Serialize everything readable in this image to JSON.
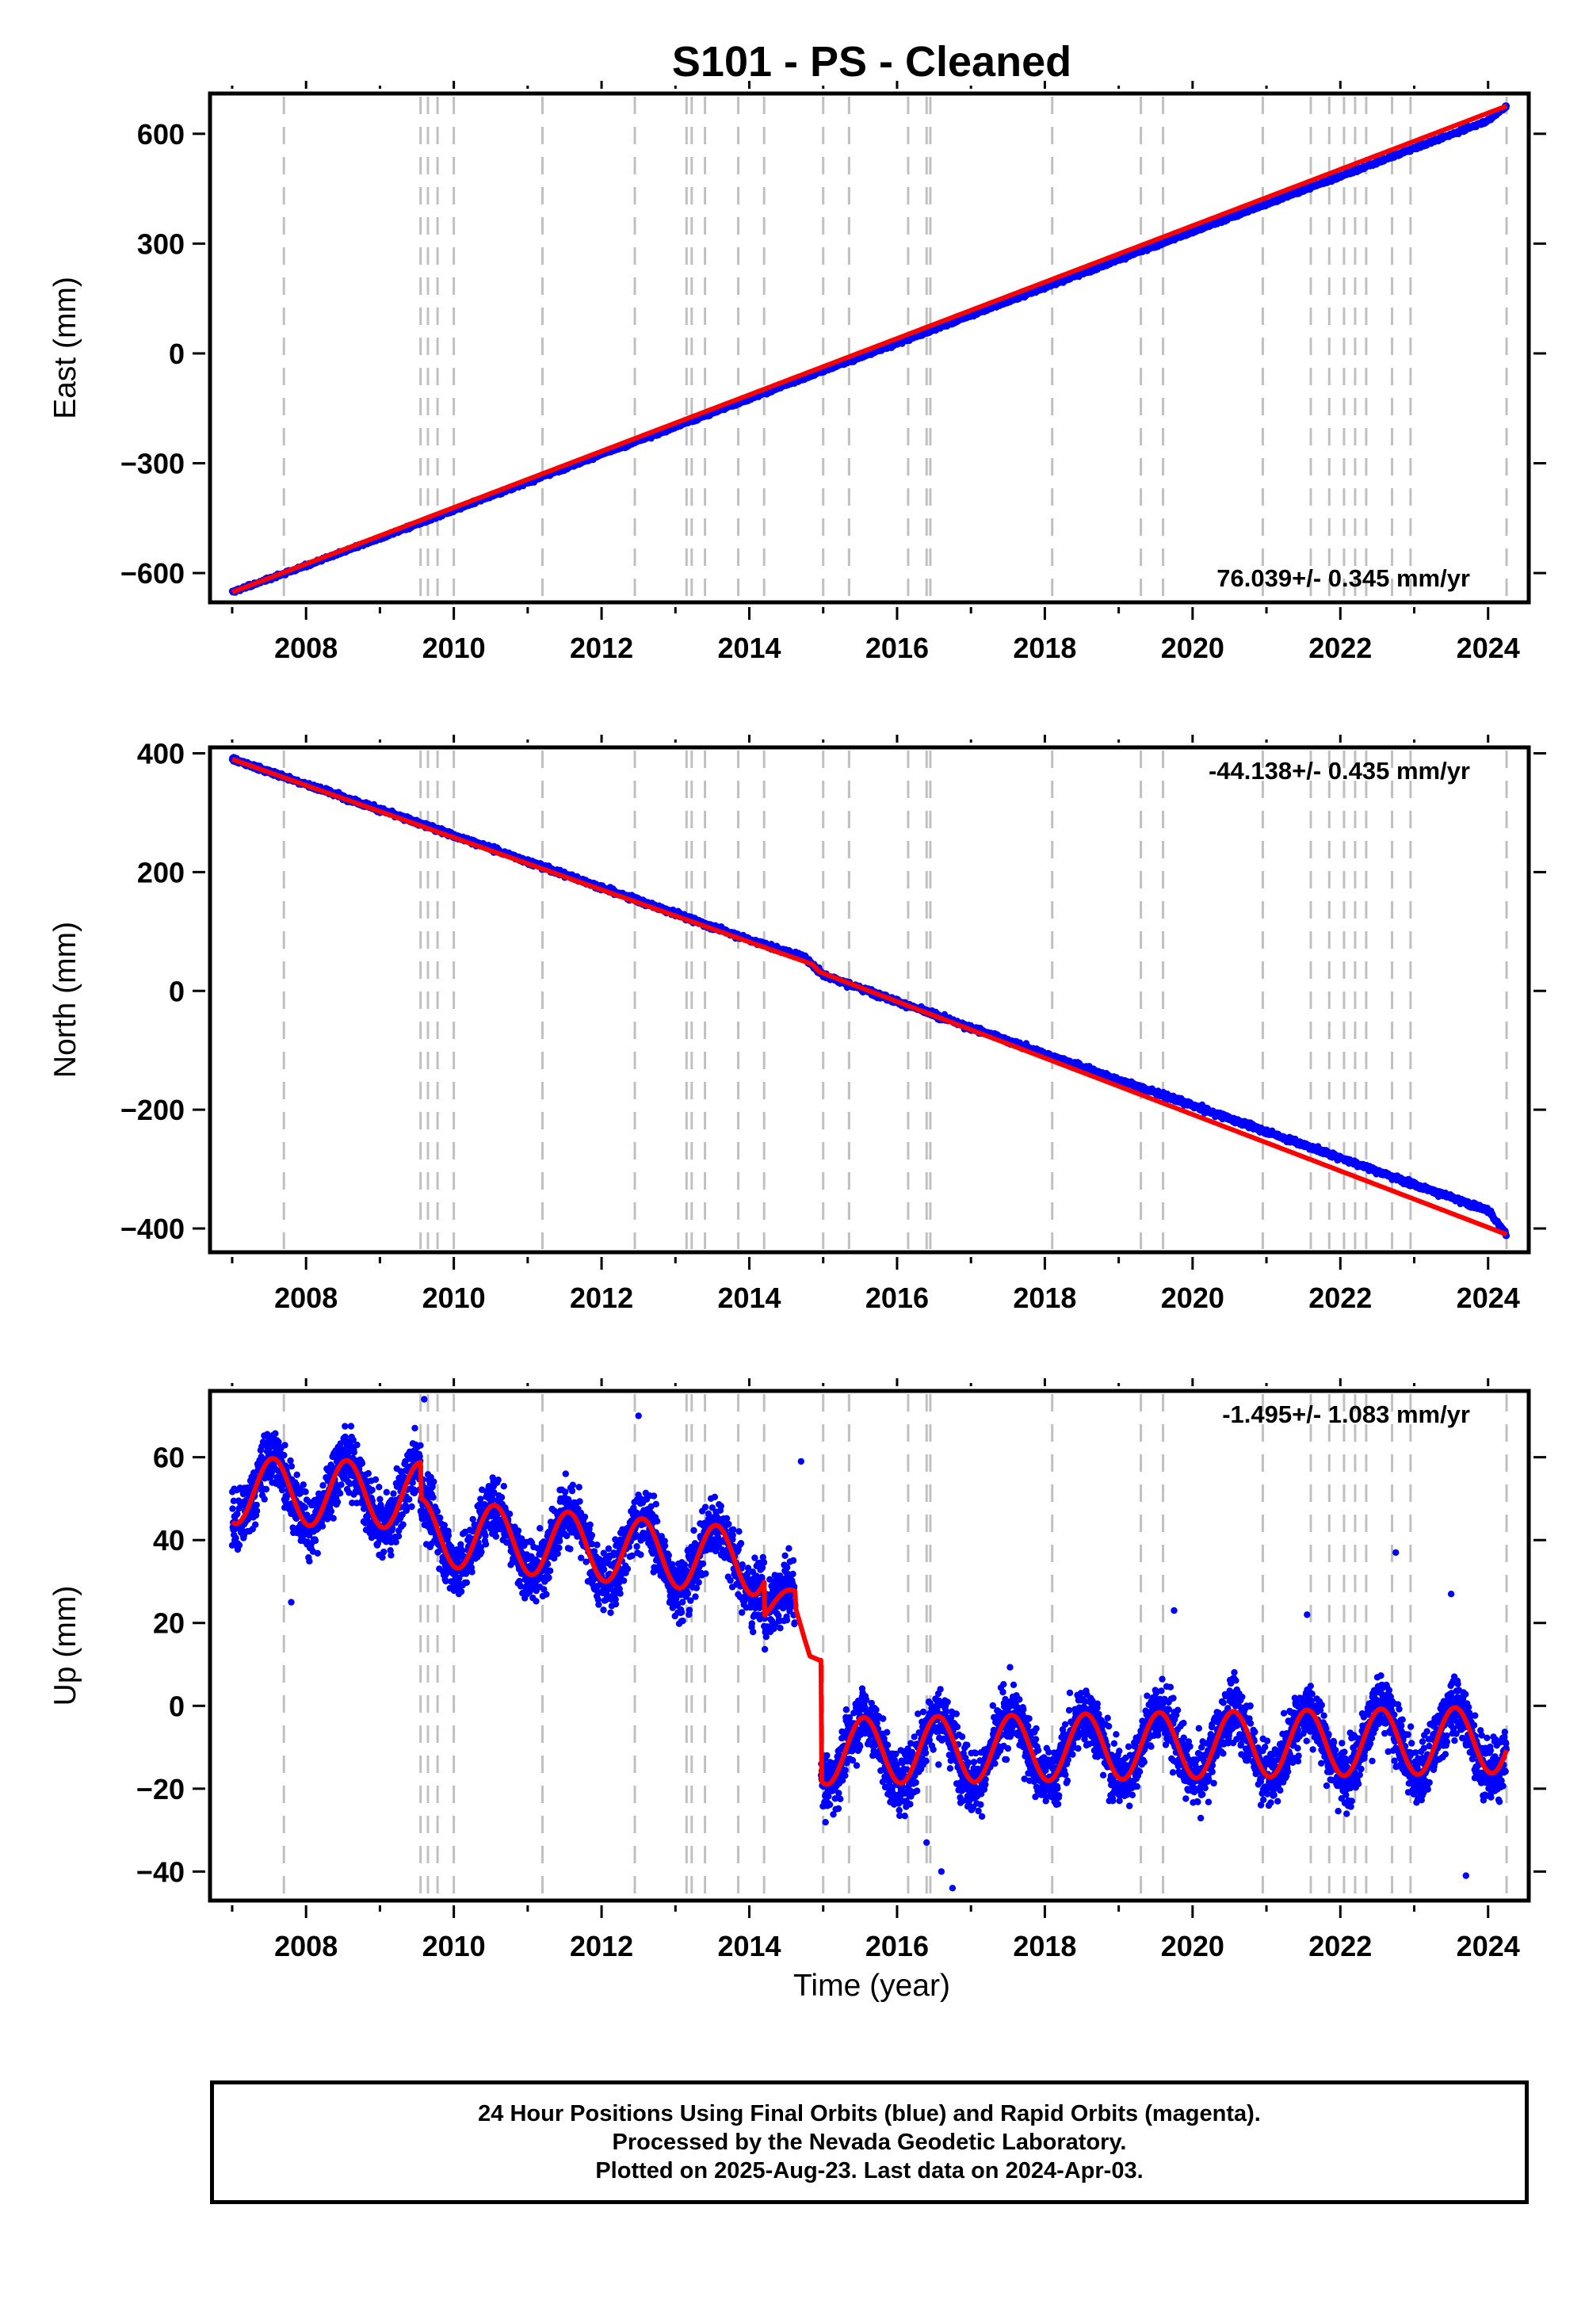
{
  "title": "S101  - PS - Cleaned",
  "xlabel": "Time (year)",
  "x_ticks": [
    "2008",
    "2010",
    "2012",
    "2014",
    "2016",
    "2018",
    "2020",
    "2022",
    "2024"
  ],
  "colors": {
    "data": "#0000ff",
    "model": "#ff0000",
    "grid": "#c0c0c0",
    "axis": "#000000"
  },
  "footer": {
    "line1": "24 Hour Positions Using Final Orbits (blue) and Rapid Orbits (magenta).",
    "line2": "Processed by the Nevada Geodetic Laboratory.",
    "line3": "Plotted on 2025-Aug-23. Last data on 2024-Apr-03."
  },
  "chart_data": [
    {
      "type": "scatter",
      "ylabel": "East (mm)",
      "rate_label": "76.039+/- 0.345 mm/yr",
      "rate_position": "bottom-right",
      "xlim": [
        2006.7,
        2024.55
      ],
      "ylim": [
        -680,
        710
      ],
      "y_ticks": [
        "-600",
        "-300",
        "0",
        "300",
        "600"
      ],
      "vertical_event_lines": [
        2007.7,
        2009.55,
        2009.65,
        2009.78,
        2010.0,
        2011.2,
        2012.45,
        2013.15,
        2013.22,
        2013.4,
        2013.85,
        2014.2,
        2015.0,
        2015.35,
        2016.15,
        2016.4,
        2016.45,
        2018.1,
        2019.3,
        2019.6,
        2020.95,
        2021.6,
        2021.85,
        2022.05,
        2022.2,
        2022.35,
        2022.7,
        2022.95,
        2024.25
      ],
      "data_points": [
        [
          2007.0,
          -652
        ],
        [
          2008.0,
          -580
        ],
        [
          2009.0,
          -505
        ],
        [
          2010.0,
          -428
        ],
        [
          2011.0,
          -352
        ],
        [
          2012.0,
          -276
        ],
        [
          2013.0,
          -201
        ],
        [
          2014.0,
          -124
        ],
        [
          2015.0,
          -48
        ],
        [
          2016.0,
          27
        ],
        [
          2017.0,
          104
        ],
        [
          2018.0,
          180
        ],
        [
          2019.0,
          256
        ],
        [
          2020.0,
          332
        ],
        [
          2021.0,
          408
        ],
        [
          2022.0,
          484
        ],
        [
          2023.0,
          560
        ],
        [
          2024.0,
          636
        ],
        [
          2024.25,
          676
        ]
      ],
      "model_line": [
        [
          2007.0,
          -652
        ],
        [
          2024.25,
          676
        ]
      ]
    },
    {
      "type": "scatter",
      "ylabel": "North (mm)",
      "rate_label": "-44.138+/- 0.435 mm/yr",
      "rate_position": "top-right",
      "xlim": [
        2006.7,
        2024.55
      ],
      "ylim": [
        -440,
        410
      ],
      "y_ticks": [
        "-400",
        "-200",
        "0",
        "200",
        "400"
      ],
      "vertical_event_lines": [
        2007.7,
        2009.55,
        2009.65,
        2009.78,
        2010.0,
        2011.2,
        2012.45,
        2013.15,
        2013.22,
        2013.4,
        2013.85,
        2014.2,
        2015.0,
        2015.35,
        2016.15,
        2016.4,
        2016.45,
        2018.1,
        2019.3,
        2019.6,
        2020.95,
        2021.6,
        2021.85,
        2022.05,
        2022.2,
        2022.35,
        2022.7,
        2022.95,
        2024.25
      ],
      "data_points": [
        [
          2007.0,
          390
        ],
        [
          2008.0,
          348
        ],
        [
          2009.0,
          305
        ],
        [
          2010.0,
          262
        ],
        [
          2011.0,
          218
        ],
        [
          2012.0,
          174
        ],
        [
          2013.0,
          130
        ],
        [
          2014.0,
          86
        ],
        [
          2014.75,
          56
        ],
        [
          2015.0,
          27
        ],
        [
          2016.0,
          -18
        ],
        [
          2017.0,
          -62
        ],
        [
          2018.0,
          -106
        ],
        [
          2019.0,
          -150
        ],
        [
          2020.0,
          -193
        ],
        [
          2021.0,
          -237
        ],
        [
          2022.0,
          -281
        ],
        [
          2023.0,
          -326
        ],
        [
          2024.0,
          -370
        ],
        [
          2024.25,
          -410
        ]
      ],
      "model_line": [
        [
          2007.0,
          390
        ],
        [
          2014.85,
          45
        ],
        [
          2014.95,
          32
        ],
        [
          2024.25,
          -410
        ]
      ]
    },
    {
      "type": "scatter",
      "ylabel": "Up (mm)",
      "rate_label": "-1.495+/- 1.083 mm/yr",
      "rate_position": "top-right",
      "xlim": [
        2006.7,
        2024.55
      ],
      "ylim": [
        -47,
        76
      ],
      "y_ticks": [
        "-40",
        "-20",
        "0",
        "20",
        "40",
        "60"
      ],
      "vertical_event_lines": [
        2007.7,
        2009.55,
        2009.65,
        2009.78,
        2010.0,
        2011.2,
        2012.45,
        2013.15,
        2013.22,
        2013.4,
        2013.85,
        2014.2,
        2015.0,
        2015.35,
        2016.15,
        2016.4,
        2016.45,
        2018.1,
        2019.3,
        2019.6,
        2020.95,
        2021.6,
        2021.85,
        2022.05,
        2022.2,
        2022.35,
        2022.7,
        2022.95,
        2024.25
      ],
      "segments": [
        {
          "start": 2007.0,
          "end": 2009.55,
          "offset": 52,
          "trend": -0.5,
          "amplitude": 8
        },
        {
          "start": 2009.55,
          "end": 2014.2,
          "offset": 42,
          "trend": -1.6,
          "amplitude": 8
        },
        {
          "start": 2014.2,
          "end": 2014.95,
          "offset": 24,
          "trend": 0,
          "amplitude": 4
        },
        {
          "start": 2014.95,
          "end": 2024.25,
          "offset": -11,
          "trend": 0.3,
          "amplitude": 8
        }
      ],
      "outliers": [
        [
          2007.8,
          25
        ],
        [
          2009.6,
          74
        ],
        [
          2012.5,
          70
        ],
        [
          2014.7,
          59
        ],
        [
          2016.4,
          -33
        ],
        [
          2016.6,
          -40
        ],
        [
          2016.75,
          -44
        ],
        [
          2019.75,
          23
        ],
        [
          2021.55,
          22
        ],
        [
          2022.75,
          37
        ],
        [
          2023.5,
          27
        ],
        [
          2023.7,
          -41
        ]
      ]
    }
  ]
}
